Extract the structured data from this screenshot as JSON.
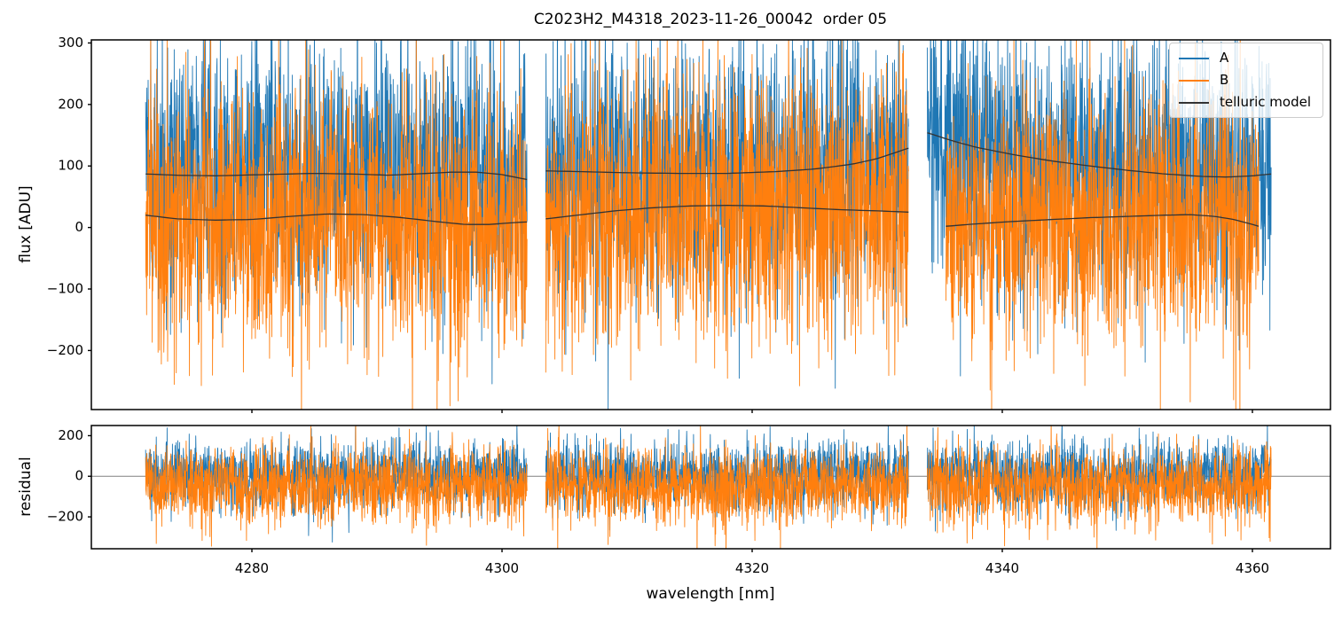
{
  "figure": {
    "background": "#ffffff",
    "spine_color": "#000000",
    "tick_color": "#000000",
    "zero_line_color": "#808080"
  },
  "legend": {
    "position": "upper right",
    "entries": [
      {
        "label": "A",
        "color": "#1f77b4"
      },
      {
        "label": "B",
        "color": "#ff7f0e"
      },
      {
        "label": "telluric model",
        "color": "#333333"
      }
    ]
  },
  "chart_data": {
    "type": "line",
    "title": "C2023H2_M4318_2023-11-26_00042  order 05",
    "xlabel": "wavelength [nm]",
    "xlim": [
      4267.2,
      4366.2
    ],
    "xticks": [
      4280,
      4300,
      4320,
      4340,
      4360
    ],
    "grid": false,
    "legend_position": "upper right",
    "segments_nm": [
      [
        4271.5,
        4302.0
      ],
      [
        4303.5,
        4332.5
      ],
      [
        4334.0,
        4361.5
      ]
    ],
    "panels": [
      {
        "name": "flux",
        "ylabel": "flux [ADU]",
        "ylim": [
          -296,
          305
        ],
        "yticks": [
          300,
          200,
          100,
          0,
          -100,
          -200
        ],
        "zero_line": false,
        "series": [
          {
            "name": "A",
            "color": "#1f77b4",
            "style": "noisy",
            "noise_sigma": 105,
            "mean_segments": [
              [
                [
                  4271.5,
                  87
                ],
                [
                  4274,
                  85
                ],
                [
                  4277,
                  84
                ],
                [
                  4281,
                  86
                ],
                [
                  4285,
                  88
                ],
                [
                  4288,
                  87
                ],
                [
                  4291,
                  85
                ],
                [
                  4294,
                  88
                ],
                [
                  4296,
                  90
                ],
                [
                  4298,
                  90
                ],
                [
                  4300,
                  86
                ],
                [
                  4302,
                  78
                ]
              ],
              [
                [
                  4303.5,
                  92
                ],
                [
                  4306,
                  91
                ],
                [
                  4310,
                  89
                ],
                [
                  4314,
                  88
                ],
                [
                  4318,
                  88
                ],
                [
                  4322,
                  91
                ],
                [
                  4325,
                  95
                ],
                [
                  4328,
                  103
                ],
                [
                  4330,
                  112
                ],
                [
                  4332.5,
                  129
                ]
              ],
              [
                [
                  4334,
                  154
                ],
                [
                  4336,
                  141
                ],
                [
                  4338,
                  130
                ],
                [
                  4341,
                  118
                ],
                [
                  4344,
                  108
                ],
                [
                  4347,
                  100
                ],
                [
                  4350,
                  93
                ],
                [
                  4353,
                  87
                ],
                [
                  4356,
                  83
                ],
                [
                  4358,
                  82
                ],
                [
                  4360,
                  84
                ],
                [
                  4361.5,
                  87
                ]
              ]
            ]
          },
          {
            "name": "B",
            "color": "#ff7f0e",
            "style": "noisy",
            "noise_sigma": 112,
            "mean_segments": [
              [
                [
                  4271.5,
                  20
                ],
                [
                  4274,
                  14
                ],
                [
                  4277,
                  12
                ],
                [
                  4280,
                  13
                ],
                [
                  4283,
                  18
                ],
                [
                  4286,
                  22
                ],
                [
                  4289,
                  21
                ],
                [
                  4292,
                  16
                ],
                [
                  4295,
                  9
                ],
                [
                  4297,
                  5
                ],
                [
                  4299,
                  5
                ],
                [
                  4301,
                  8
                ],
                [
                  4302,
                  9
                ]
              ],
              [
                [
                  4303.5,
                  14
                ],
                [
                  4306,
                  20
                ],
                [
                  4309,
                  27
                ],
                [
                  4312,
                  32
                ],
                [
                  4315,
                  35
                ],
                [
                  4318,
                  36
                ],
                [
                  4321,
                  35
                ],
                [
                  4324,
                  32
                ],
                [
                  4327,
                  29
                ],
                [
                  4330,
                  27
                ],
                [
                  4332.5,
                  25
                ]
              ],
              [
                [
                  4335.5,
                  2
                ],
                [
                  4338,
                  6
                ],
                [
                  4341,
                  10
                ],
                [
                  4344,
                  13
                ],
                [
                  4347,
                  16
                ],
                [
                  4350,
                  18
                ],
                [
                  4353,
                  20
                ],
                [
                  4355,
                  21
                ],
                [
                  4357,
                  18
                ],
                [
                  4358.5,
                  13
                ],
                [
                  4360,
                  5
                ],
                [
                  4360.5,
                  2
                ]
              ]
            ]
          },
          {
            "name": "telluric model",
            "color": "#333333",
            "style": "smooth",
            "line_width": 1.3,
            "curve_segments": [
              [
                [
                  4271.5,
                  87
                ],
                [
                  4274,
                  85
                ],
                [
                  4277,
                  84
                ],
                [
                  4281,
                  86
                ],
                [
                  4285,
                  88
                ],
                [
                  4288,
                  87
                ],
                [
                  4291,
                  85
                ],
                [
                  4294,
                  88
                ],
                [
                  4296,
                  90
                ],
                [
                  4298,
                  90
                ],
                [
                  4300,
                  86
                ],
                [
                  4302,
                  78
                ]
              ],
              [
                [
                  4303.5,
                  92
                ],
                [
                  4306,
                  91
                ],
                [
                  4310,
                  89
                ],
                [
                  4314,
                  88
                ],
                [
                  4318,
                  88
                ],
                [
                  4322,
                  91
                ],
                [
                  4325,
                  95
                ],
                [
                  4328,
                  103
                ],
                [
                  4330,
                  112
                ],
                [
                  4332.5,
                  129
                ]
              ],
              [
                [
                  4334,
                  154
                ],
                [
                  4336,
                  141
                ],
                [
                  4338,
                  130
                ],
                [
                  4341,
                  118
                ],
                [
                  4344,
                  108
                ],
                [
                  4347,
                  100
                ],
                [
                  4350,
                  93
                ],
                [
                  4353,
                  87
                ],
                [
                  4356,
                  83
                ],
                [
                  4358,
                  82
                ],
                [
                  4360,
                  84
                ],
                [
                  4361.5,
                  87
                ]
              ],
              [
                [
                  4271.5,
                  20
                ],
                [
                  4274,
                  14
                ],
                [
                  4277,
                  12
                ],
                [
                  4280,
                  13
                ],
                [
                  4283,
                  18
                ],
                [
                  4286,
                  22
                ],
                [
                  4289,
                  21
                ],
                [
                  4292,
                  16
                ],
                [
                  4295,
                  9
                ],
                [
                  4297,
                  5
                ],
                [
                  4299,
                  5
                ],
                [
                  4301,
                  8
                ],
                [
                  4302,
                  9
                ]
              ],
              [
                [
                  4303.5,
                  14
                ],
                [
                  4306,
                  20
                ],
                [
                  4309,
                  27
                ],
                [
                  4312,
                  32
                ],
                [
                  4315,
                  35
                ],
                [
                  4318,
                  36
                ],
                [
                  4321,
                  35
                ],
                [
                  4324,
                  32
                ],
                [
                  4327,
                  29
                ],
                [
                  4330,
                  27
                ],
                [
                  4332.5,
                  25
                ]
              ],
              [
                [
                  4335.5,
                  2
                ],
                [
                  4338,
                  6
                ],
                [
                  4341,
                  10
                ],
                [
                  4344,
                  13
                ],
                [
                  4347,
                  16
                ],
                [
                  4350,
                  18
                ],
                [
                  4353,
                  20
                ],
                [
                  4355,
                  21
                ],
                [
                  4357,
                  18
                ],
                [
                  4358.5,
                  13
                ],
                [
                  4360,
                  5
                ],
                [
                  4360.5,
                  2
                ]
              ]
            ]
          }
        ]
      },
      {
        "name": "residual",
        "ylabel": "residual",
        "ylim": [
          -357,
          250
        ],
        "yticks": [
          200,
          0,
          -200
        ],
        "zero_line": true,
        "series": [
          {
            "name": "A",
            "color": "#1f77b4",
            "style": "noisy",
            "noise_sigma": 85,
            "mean": 5
          },
          {
            "name": "B",
            "color": "#ff7f0e",
            "style": "noisy",
            "noise_sigma": 95,
            "mean": -45
          }
        ]
      }
    ]
  }
}
